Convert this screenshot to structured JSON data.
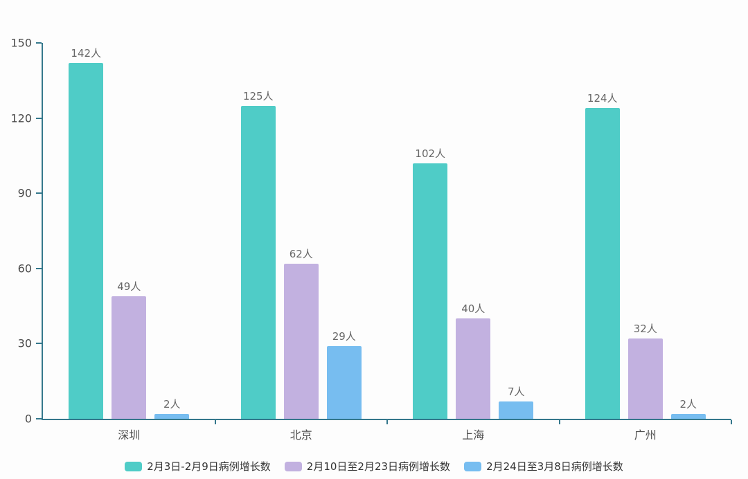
{
  "chart_data": {
    "type": "bar",
    "title": "",
    "xlabel": "",
    "ylabel": "",
    "categories": [
      "深圳",
      "北京",
      "上海",
      "广州"
    ],
    "series": [
      {
        "name": "2月3日-2月9日病例增长数",
        "color": "#4FCCC7",
        "values": [
          142,
          125,
          102,
          124
        ]
      },
      {
        "name": "2月10日至2月23日病例增长数",
        "color": "#C2B1E0",
        "values": [
          49,
          62,
          40,
          32
        ]
      },
      {
        "name": "2月24日至3月8日病例增长数",
        "color": "#77BDF0",
        "values": [
          2,
          29,
          7,
          2
        ]
      }
    ],
    "value_suffix": "人",
    "ylim": [
      0,
      150
    ],
    "y_ticks": [
      0,
      30,
      60,
      90,
      120,
      150
    ],
    "grid": false,
    "legend_position": "bottom",
    "axis_color": "#35788C",
    "value_label_color": "#666666",
    "tick_label_color": "#4A4A4A"
  }
}
